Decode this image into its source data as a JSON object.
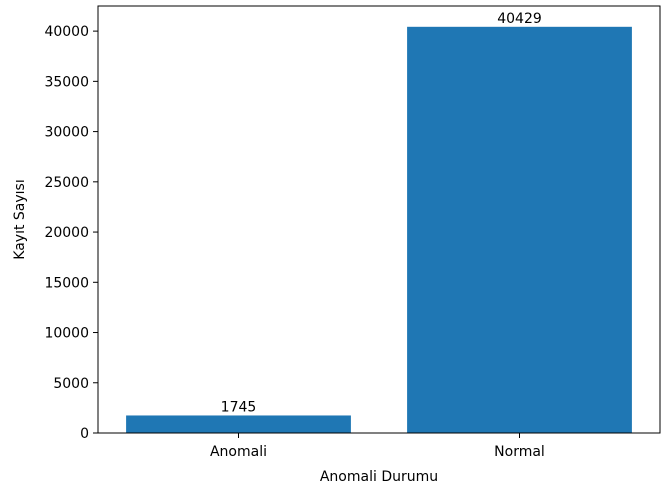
{
  "chart_data": {
    "type": "bar",
    "categories": [
      "Anomali",
      "Normal"
    ],
    "values": [
      1745,
      40429
    ],
    "data_labels": [
      "1745",
      "40429"
    ],
    "title": "",
    "xlabel": "Anomali Durumu",
    "ylabel": "Kayıt Sayısı",
    "ylim": [
      0,
      42500
    ],
    "yticks": [
      0,
      5000,
      10000,
      15000,
      20000,
      25000,
      30000,
      35000,
      40000
    ],
    "bar_color": "#1f77b4",
    "grid": false,
    "legend": "none"
  }
}
